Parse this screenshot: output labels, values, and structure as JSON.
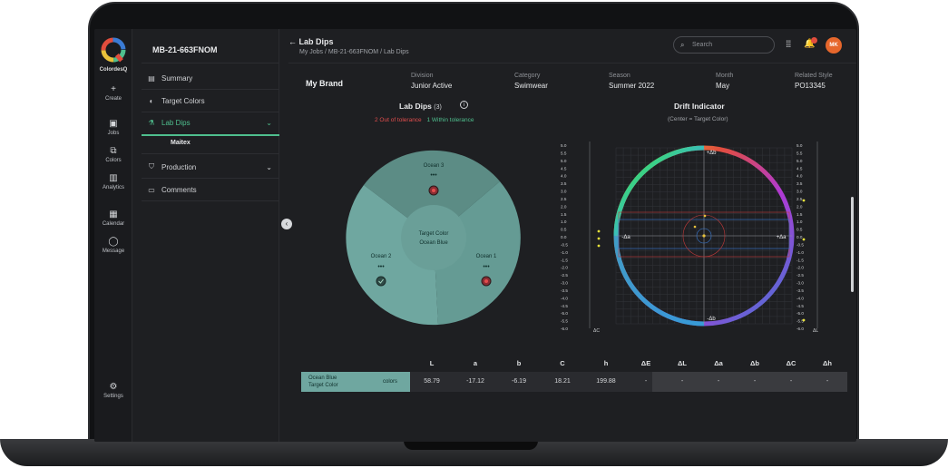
{
  "app": {
    "name": "ColordesQ",
    "brand_colors": [
      "#4fbf8e",
      "#e24d3d",
      "#e8c23a",
      "#3a7bd5"
    ]
  },
  "rail": [
    {
      "icon": "plus-icon",
      "label": "Create"
    },
    {
      "icon": "briefcase-icon",
      "label": "Jobs"
    },
    {
      "icon": "palette-icon",
      "label": "Colors"
    },
    {
      "icon": "chart-icon",
      "label": "Analytics"
    },
    {
      "icon": "calendar-icon",
      "label": "Calendar"
    },
    {
      "icon": "message-icon",
      "label": "Message"
    },
    {
      "icon": "gear-icon",
      "label": "Settings"
    }
  ],
  "sidebar": {
    "title": "MB-21-663FNOM",
    "items": [
      {
        "icon": "clipboard-icon",
        "label": "Summary"
      },
      {
        "icon": "palette-icon",
        "label": "Target Colors"
      },
      {
        "icon": "flask-icon",
        "label": "Lab Dips",
        "active": true
      },
      {
        "icon": "tshirt-icon",
        "label": "Production"
      },
      {
        "icon": "comment-icon",
        "label": "Comments"
      }
    ],
    "sub_item": "Maitex"
  },
  "header": {
    "title": "Lab Dips",
    "breadcrumb": "My Jobs / MB-21-663FNOM / Lab Dips",
    "search_placeholder": "Search",
    "notification_count": "",
    "avatar_initials": "MK"
  },
  "info": {
    "brand": "My Brand",
    "fields": [
      {
        "label": "Division",
        "value": "Junior Active"
      },
      {
        "label": "Category",
        "value": "Swimwear"
      },
      {
        "label": "Season",
        "value": "Summer 2022"
      },
      {
        "label": "Month",
        "value": "May"
      },
      {
        "label": "Related Style",
        "value": "PO13345"
      }
    ]
  },
  "lab_dips": {
    "title": "Lab Dips",
    "count": "(3)",
    "out_of_tolerance": "2 Out of tolerance",
    "within_tolerance": "1 Within tolerance",
    "center_label_1": "Target Color",
    "center_label_2": "Ocean Blue",
    "segments": [
      {
        "name": "Ocean 3",
        "status": "out",
        "dots": "•••"
      },
      {
        "name": "Ocean 1",
        "status": "out",
        "dots": "•••"
      },
      {
        "name": "Ocean 2",
        "status": "within",
        "dots": "•••"
      }
    ]
  },
  "drift": {
    "title": "Drift Indicator",
    "subtitle": "(Center = Target Color)",
    "axis_plus_b": "+Δb",
    "axis_minus_b": "-Δb",
    "axis_plus_a": "+Δa",
    "axis_minus_a": "-Δa",
    "left_axis_label": "ΔC",
    "right_axis_label": "ΔL",
    "ticks": [
      "5.0",
      "5.5",
      "5.0",
      "4.5",
      "4.0",
      "3.5",
      "3.0",
      "2.5",
      "2.0",
      "1.5",
      "1.0",
      "0.5",
      "0.0",
      "-0.5",
      "-1.0",
      "-1.5",
      "-2.0",
      "-2.5",
      "-3.0",
      "-3.5",
      "-4.0",
      "-4.5",
      "-5.0",
      "-5.5",
      "-6.0"
    ]
  },
  "table": {
    "headers": [
      "L",
      "a",
      "b",
      "C",
      "h",
      "ΔE",
      "ΔL",
      "Δa",
      "Δb",
      "ΔC",
      "Δh"
    ],
    "row": {
      "name_1": "Ocean Blue",
      "name_2": "Target Color",
      "select_label": "colors",
      "values": [
        "58.79",
        "-17.12",
        "-6.19",
        "18.21",
        "199.88",
        "-",
        "-",
        "-",
        "-",
        "-",
        "-"
      ]
    }
  }
}
